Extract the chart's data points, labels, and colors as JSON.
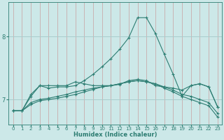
{
  "title": "",
  "xlabel": "Humidex (Indice chaleur)",
  "ylabel": "",
  "background_color": "#cce8e8",
  "line_color": "#2d7d72",
  "hgrid_color": "#a8cccc",
  "vgrid_color": "#c8a0a0",
  "xlim": [
    -0.5,
    23.5
  ],
  "ylim": [
    6.6,
    8.55
  ],
  "yticks": [
    7,
    8
  ],
  "xticks": [
    0,
    1,
    2,
    3,
    4,
    5,
    6,
    7,
    8,
    9,
    10,
    11,
    12,
    13,
    14,
    15,
    16,
    17,
    18,
    19,
    20,
    21,
    22,
    23
  ],
  "series": [
    [
      6.82,
      6.82,
      7.08,
      7.22,
      7.22,
      7.22,
      7.22,
      7.28,
      7.25,
      7.22,
      7.22,
      7.22,
      7.24,
      7.3,
      7.32,
      7.3,
      7.22,
      7.2,
      7.18,
      7.15,
      7.22,
      7.25,
      7.2,
      6.88
    ],
    [
      6.82,
      6.82,
      6.95,
      7.0,
      7.02,
      7.05,
      7.08,
      7.12,
      7.15,
      7.18,
      7.2,
      7.22,
      7.25,
      7.28,
      7.3,
      7.28,
      7.25,
      7.2,
      7.15,
      7.08,
      7.05,
      7.0,
      6.95,
      6.78
    ],
    [
      6.82,
      6.82,
      6.92,
      6.98,
      7.0,
      7.02,
      7.05,
      7.08,
      7.12,
      7.16,
      7.2,
      7.22,
      7.25,
      7.28,
      7.3,
      7.28,
      7.25,
      7.18,
      7.12,
      7.05,
      7.0,
      6.95,
      6.9,
      6.72
    ],
    [
      6.82,
      6.82,
      7.05,
      7.22,
      7.18,
      7.2,
      7.2,
      7.22,
      7.3,
      7.4,
      7.52,
      7.65,
      7.8,
      7.98,
      8.3,
      8.3,
      8.05,
      7.72,
      7.4,
      7.05,
      7.22,
      7.25,
      7.2,
      6.88
    ]
  ]
}
